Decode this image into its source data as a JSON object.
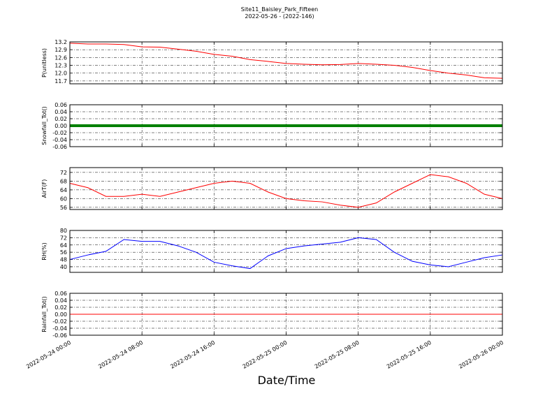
{
  "figure": {
    "title": "Site11_Baisley_Park_Fifteen",
    "subtitle": "2022-05-26 - (2022-146)",
    "x_label": "Date/Time",
    "x": [
      "2022-05-24 00:00",
      "2022-05-24 02:00",
      "2022-05-24 04:00",
      "2022-05-24 06:00",
      "2022-05-24 08:00",
      "2022-05-24 10:00",
      "2022-05-24 12:00",
      "2022-05-24 14:00",
      "2022-05-24 16:00",
      "2022-05-24 18:00",
      "2022-05-24 20:00",
      "2022-05-24 22:00",
      "2022-05-25 00:00",
      "2022-05-25 02:00",
      "2022-05-25 04:00",
      "2022-05-25 06:00",
      "2022-05-25 08:00",
      "2022-05-25 10:00",
      "2022-05-25 12:00",
      "2022-05-25 14:00",
      "2022-05-25 16:00",
      "2022-05-25 18:00",
      "2022-05-25 20:00",
      "2022-05-25 22:00",
      "2022-05-26 00:00"
    ],
    "xlim": [
      "2022-05-24 00:00",
      "2022-05-26 00:00"
    ],
    "xticks": [
      "2022-05-24 00:00",
      "2022-05-24 08:00",
      "2022-05-24 16:00",
      "2022-05-25 00:00",
      "2022-05-25 08:00",
      "2022-05-25 16:00",
      "2022-05-26 00:00"
    ]
  },
  "chart_data": [
    {
      "type": "line",
      "y_label": "P(unitless)",
      "color": "#ff0000",
      "grid": true,
      "ylim": [
        11.59,
        13.2
      ],
      "yticks": [
        {
          "value": 11.7,
          "label": "11.7"
        },
        {
          "value": 12,
          "label": "12.0"
        },
        12.3,
        12.6,
        12.9,
        13.2
      ],
      "values": [
        13.15,
        13.12,
        13.12,
        13.1,
        13.01,
        13.0,
        12.92,
        12.84,
        12.72,
        12.65,
        12.52,
        12.45,
        12.37,
        12.34,
        12.32,
        12.33,
        12.37,
        12.34,
        12.3,
        12.22,
        12.1,
        12.0,
        11.93,
        11.82,
        11.8
      ]
    },
    {
      "type": "line",
      "y_label": "Snowfall_Tot()",
      "color": "#008000",
      "marker": true,
      "grid": true,
      "ylim": [
        -0.06,
        0.06
      ],
      "yticks": [
        -0.06,
        -0.04,
        -0.02,
        {
          "value": 0,
          "label": "0.00"
        },
        0.02,
        0.04,
        0.06
      ],
      "values": [
        0,
        0,
        0,
        0,
        0,
        0,
        0,
        0,
        0,
        0,
        0,
        0,
        0,
        0,
        0,
        0,
        0,
        0,
        0,
        0,
        0,
        0,
        0,
        0,
        0
      ]
    },
    {
      "type": "line",
      "y_label": "AirT(F)",
      "color": "#ff0000",
      "grid": true,
      "ylim": [
        55,
        74.2
      ],
      "yticks": [
        56,
        60,
        64,
        68,
        72
      ],
      "values": [
        67,
        65,
        61,
        61,
        62,
        61,
        63,
        65,
        67,
        68,
        67,
        63,
        60,
        59,
        58.5,
        57,
        56,
        58,
        63,
        67,
        71,
        70,
        67,
        62,
        60
      ]
    },
    {
      "type": "line",
      "y_label": "RH(%)",
      "color": "#0000ff",
      "grid": true,
      "ylim": [
        33.8,
        80
      ],
      "yticks": [
        40,
        48,
        56,
        64,
        72,
        80
      ],
      "values": [
        48,
        53,
        57,
        70,
        68,
        68,
        63,
        56,
        45,
        41,
        38,
        52,
        60,
        63,
        65,
        67,
        72,
        70,
        56,
        46,
        42,
        40,
        45,
        50,
        53
      ]
    },
    {
      "type": "line",
      "y_label": "Rainfall_Tot()",
      "color": "#ff0000",
      "grid": true,
      "ylim": [
        -0.06,
        0.06
      ],
      "yticks": [
        -0.06,
        -0.04,
        -0.02,
        {
          "value": 0,
          "label": "0.00"
        },
        0.02,
        0.04,
        0.06
      ],
      "values": [
        0,
        0,
        0,
        0,
        0,
        0,
        0,
        0,
        0,
        0,
        0,
        0,
        0,
        0,
        0,
        0,
        0,
        0,
        0,
        0,
        0,
        0,
        0,
        0,
        0
      ]
    }
  ]
}
